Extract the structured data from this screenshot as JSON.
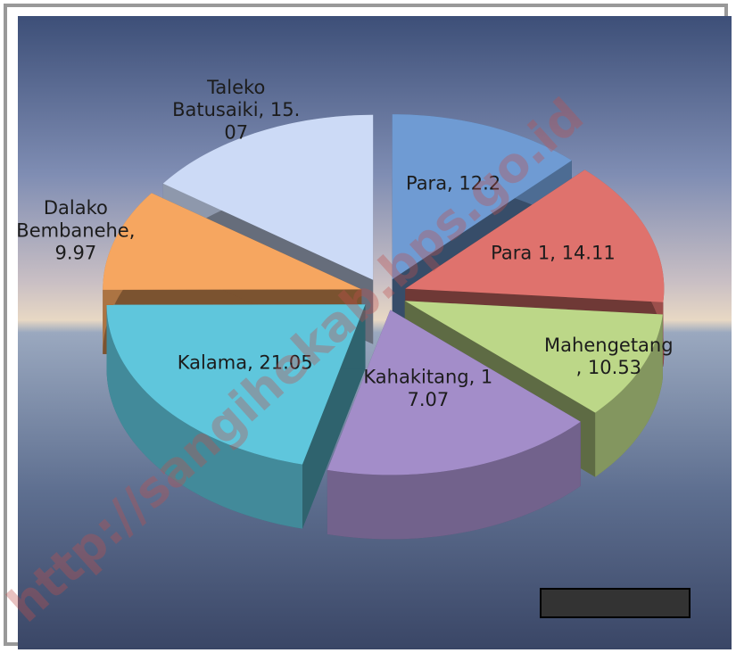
{
  "chart_data": {
    "type": "pie3d",
    "values": [
      12.2,
      14.11,
      10.53,
      17.07,
      21.05,
      9.97,
      15.07
    ],
    "value_labels": [
      "Para, 12.2",
      "Para 1, 14.11",
      "Mahengetang\n, 10.53",
      "Kahakitang, 1\n7.07",
      "Kalama, 21.05",
      "Dalako\nBembanehe,\n9.97",
      "Taleko\nBatusaiki, 15.\n07"
    ],
    "colors": [
      "#6f9bd3",
      "#df726d",
      "#bcd788",
      "#a38dc9",
      "#5fc6dc",
      "#f6a660",
      "#ccdaf6"
    ],
    "watermark": "http://sangihekab.bps.go.id"
  }
}
